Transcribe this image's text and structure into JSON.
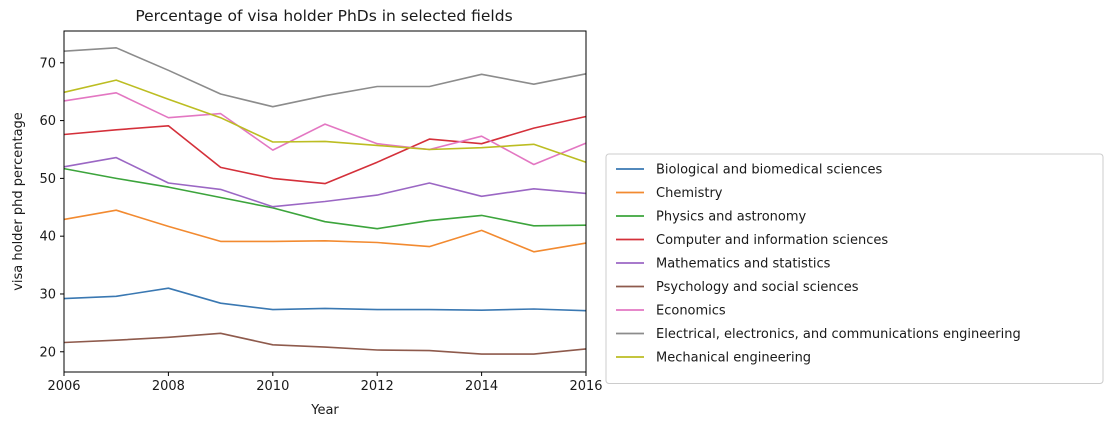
{
  "chart_data": {
    "type": "line",
    "title": "Percentage of visa holder PhDs in selected fields",
    "xlabel": "Year",
    "ylabel": "visa holder phd percentage",
    "xlim": [
      2006,
      2016
    ],
    "ylim": [
      16.5,
      75.5
    ],
    "xticks": [
      2006,
      2008,
      2010,
      2012,
      2014,
      2016
    ],
    "yticks": [
      20,
      30,
      40,
      50,
      60,
      70
    ],
    "grid": false,
    "legend_position": "outside-right",
    "x": [
      2006,
      2007,
      2008,
      2009,
      2010,
      2011,
      2012,
      2013,
      2014,
      2015,
      2016
    ],
    "series": [
      {
        "name": "Biological and biomedical sciences",
        "color": "#3a78b2",
        "values": [
          29.2,
          29.6,
          31.0,
          28.4,
          27.3,
          27.5,
          27.3,
          27.3,
          27.2,
          27.4,
          27.1
        ]
      },
      {
        "name": "Chemistry",
        "color": "#f28a30",
        "values": [
          42.9,
          44.5,
          41.7,
          39.1,
          39.1,
          39.2,
          38.9,
          38.2,
          41.0,
          37.3,
          38.8
        ]
      },
      {
        "name": "Physics and astronomy",
        "color": "#3ca43c",
        "values": [
          51.7,
          50.0,
          48.5,
          46.7,
          44.9,
          42.5,
          41.3,
          42.7,
          43.6,
          41.8,
          41.9
        ]
      },
      {
        "name": "Computer and information sciences",
        "color": "#d4303a",
        "values": [
          57.6,
          58.4,
          59.1,
          51.9,
          50.0,
          49.1,
          52.8,
          56.8,
          56.0,
          58.7,
          60.7
        ]
      },
      {
        "name": "Mathematics and statistics",
        "color": "#9b67c4",
        "values": [
          52.0,
          53.6,
          49.2,
          48.1,
          45.1,
          46.0,
          47.1,
          49.2,
          46.9,
          48.2,
          47.4
        ]
      },
      {
        "name": "Psychology and social sciences",
        "color": "#8e5a4c",
        "values": [
          21.6,
          22.0,
          22.5,
          23.2,
          21.2,
          20.8,
          20.3,
          20.2,
          19.6,
          19.6,
          20.5
        ]
      },
      {
        "name": "Economics",
        "color": "#e377c2",
        "values": [
          63.4,
          64.8,
          60.5,
          61.2,
          54.9,
          59.4,
          56.0,
          55.0,
          57.3,
          52.4,
          56.1
        ]
      },
      {
        "name": "Electrical, electronics, and communications engineering",
        "color": "#8c8c8c",
        "values": [
          72.0,
          72.6,
          68.7,
          64.6,
          62.4,
          64.3,
          65.9,
          65.9,
          68.0,
          66.3,
          68.1
        ]
      },
      {
        "name": "Mechanical engineering",
        "color": "#bcbd22",
        "values": [
          64.9,
          67.0,
          63.7,
          60.5,
          56.3,
          56.4,
          55.7,
          55.0,
          55.3,
          55.9,
          52.8
        ]
      }
    ]
  }
}
